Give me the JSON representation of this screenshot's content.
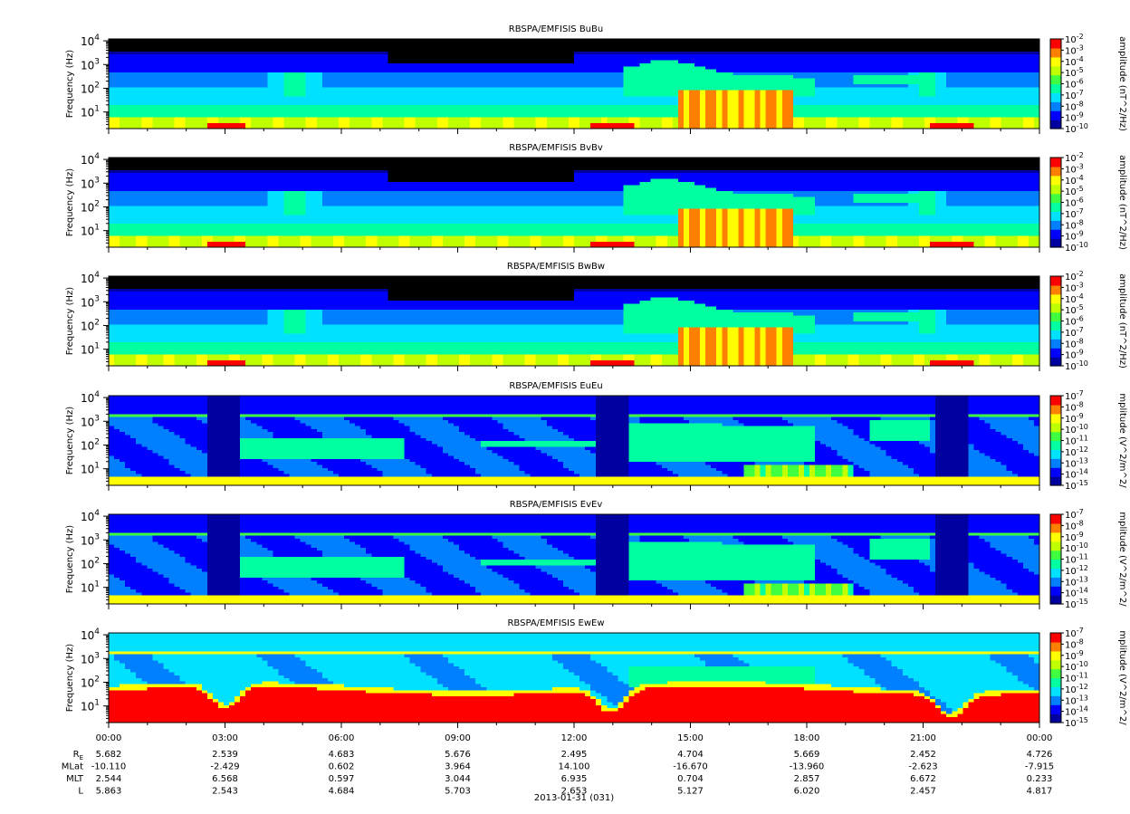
{
  "chart_data": {
    "type": "heatmap",
    "panels": [
      {
        "title": "RBSPA/EMFISIS  BuBu",
        "ylabel": "Frequency (Hz)",
        "y_scale": "log",
        "ylim": [
          2,
          12000
        ],
        "y_ticks": [
          {
            "base": "10",
            "exp": "1",
            "value": 10
          },
          {
            "base": "10",
            "exp": "2",
            "value": 100
          },
          {
            "base": "10",
            "exp": "3",
            "value": 1000
          },
          {
            "base": "10",
            "exp": "4",
            "value": 10000
          }
        ],
        "colorbar_label": "amplitude (nT^2/Hz)",
        "colorbar_ticks": [
          {
            "base": "10",
            "exp": "-2"
          },
          {
            "base": "10",
            "exp": "-3"
          },
          {
            "base": "10",
            "exp": "-4"
          },
          {
            "base": "10",
            "exp": "-5"
          },
          {
            "base": "10",
            "exp": "-6"
          },
          {
            "base": "10",
            "exp": "-7"
          },
          {
            "base": "10",
            "exp": "-8"
          },
          {
            "base": "10",
            "exp": "-9"
          },
          {
            "base": "10",
            "exp": "-10"
          }
        ],
        "kind": "B",
        "variant": 0
      },
      {
        "title": "RBSPA/EMFISIS  BvBv",
        "ylabel": "Frequency (Hz)",
        "y_scale": "log",
        "ylim": [
          2,
          12000
        ],
        "y_ticks": [
          {
            "base": "10",
            "exp": "1",
            "value": 10
          },
          {
            "base": "10",
            "exp": "2",
            "value": 100
          },
          {
            "base": "10",
            "exp": "3",
            "value": 1000
          },
          {
            "base": "10",
            "exp": "4",
            "value": 10000
          }
        ],
        "colorbar_label": "amplitude (nT^2/Hz)",
        "colorbar_ticks": [
          {
            "base": "10",
            "exp": "-2"
          },
          {
            "base": "10",
            "exp": "-3"
          },
          {
            "base": "10",
            "exp": "-4"
          },
          {
            "base": "10",
            "exp": "-5"
          },
          {
            "base": "10",
            "exp": "-6"
          },
          {
            "base": "10",
            "exp": "-7"
          },
          {
            "base": "10",
            "exp": "-8"
          },
          {
            "base": "10",
            "exp": "-9"
          },
          {
            "base": "10",
            "exp": "-10"
          }
        ],
        "kind": "B",
        "variant": 1
      },
      {
        "title": "RBSPA/EMFISIS  BwBw",
        "ylabel": "Frequency (Hz)",
        "y_scale": "log",
        "ylim": [
          2,
          12000
        ],
        "y_ticks": [
          {
            "base": "10",
            "exp": "1",
            "value": 10
          },
          {
            "base": "10",
            "exp": "2",
            "value": 100
          },
          {
            "base": "10",
            "exp": "3",
            "value": 1000
          },
          {
            "base": "10",
            "exp": "4",
            "value": 10000
          }
        ],
        "colorbar_label": "amplitude (nT^2/Hz)",
        "colorbar_ticks": [
          {
            "base": "10",
            "exp": "-2"
          },
          {
            "base": "10",
            "exp": "-3"
          },
          {
            "base": "10",
            "exp": "-4"
          },
          {
            "base": "10",
            "exp": "-5"
          },
          {
            "base": "10",
            "exp": "-6"
          },
          {
            "base": "10",
            "exp": "-7"
          },
          {
            "base": "10",
            "exp": "-8"
          },
          {
            "base": "10",
            "exp": "-9"
          },
          {
            "base": "10",
            "exp": "-10"
          }
        ],
        "kind": "B",
        "variant": 2
      },
      {
        "title": "RBSPA/EMFISIS  EuEu",
        "ylabel": "Frequency (Hz)",
        "y_scale": "log",
        "ylim": [
          2,
          12000
        ],
        "y_ticks": [
          {
            "base": "10",
            "exp": "1",
            "value": 10
          },
          {
            "base": "10",
            "exp": "2",
            "value": 100
          },
          {
            "base": "10",
            "exp": "3",
            "value": 1000
          },
          {
            "base": "10",
            "exp": "4",
            "value": 10000
          }
        ],
        "colorbar_label": "mplitude (V^2/m^2/",
        "colorbar_ticks": [
          {
            "base": "10",
            "exp": "-7"
          },
          {
            "base": "10",
            "exp": "-8"
          },
          {
            "base": "10",
            "exp": "-9"
          },
          {
            "base": "10",
            "exp": "-10"
          },
          {
            "base": "10",
            "exp": "-11"
          },
          {
            "base": "10",
            "exp": "-12"
          },
          {
            "base": "10",
            "exp": "-13"
          },
          {
            "base": "10",
            "exp": "-14"
          },
          {
            "base": "10",
            "exp": "-15"
          }
        ],
        "kind": "E",
        "variant": 0
      },
      {
        "title": "RBSPA/EMFISIS  EvEv",
        "ylabel": "Frequency (Hz)",
        "y_scale": "log",
        "ylim": [
          2,
          12000
        ],
        "y_ticks": [
          {
            "base": "10",
            "exp": "1",
            "value": 10
          },
          {
            "base": "10",
            "exp": "2",
            "value": 100
          },
          {
            "base": "10",
            "exp": "3",
            "value": 1000
          },
          {
            "base": "10",
            "exp": "4",
            "value": 10000
          }
        ],
        "colorbar_label": "mplitude (V^2/m^2/",
        "colorbar_ticks": [
          {
            "base": "10",
            "exp": "-7"
          },
          {
            "base": "10",
            "exp": "-8"
          },
          {
            "base": "10",
            "exp": "-9"
          },
          {
            "base": "10",
            "exp": "-10"
          },
          {
            "base": "10",
            "exp": "-11"
          },
          {
            "base": "10",
            "exp": "-12"
          },
          {
            "base": "10",
            "exp": "-13"
          },
          {
            "base": "10",
            "exp": "-14"
          },
          {
            "base": "10",
            "exp": "-15"
          }
        ],
        "kind": "E",
        "variant": 1
      },
      {
        "title": "RBSPA/EMFISIS  EwEw",
        "ylabel": "Frequency (Hz)",
        "y_scale": "log",
        "ylim": [
          2,
          12000
        ],
        "y_ticks": [
          {
            "base": "10",
            "exp": "1",
            "value": 10
          },
          {
            "base": "10",
            "exp": "2",
            "value": 100
          },
          {
            "base": "10",
            "exp": "3",
            "value": 1000
          },
          {
            "base": "10",
            "exp": "4",
            "value": 10000
          }
        ],
        "colorbar_label": "mplitude (V^2/m^2/",
        "colorbar_ticks": [
          {
            "base": "10",
            "exp": "-7"
          },
          {
            "base": "10",
            "exp": "-8"
          },
          {
            "base": "10",
            "exp": "-9"
          },
          {
            "base": "10",
            "exp": "-10"
          },
          {
            "base": "10",
            "exp": "-11"
          },
          {
            "base": "10",
            "exp": "-12"
          },
          {
            "base": "10",
            "exp": "-13"
          },
          {
            "base": "10",
            "exp": "-14"
          },
          {
            "base": "10",
            "exp": "-15"
          }
        ],
        "kind": "Ew",
        "variant": 0
      }
    ],
    "colormap": [
      "#0000a0",
      "#0000ff",
      "#0080ff",
      "#00e0ff",
      "#00ffa0",
      "#40ff40",
      "#c0ff00",
      "#ffff00",
      "#ff8000",
      "#ff0000"
    ],
    "x_ticks": [
      "00:00",
      "03:00",
      "06:00",
      "09:00",
      "12:00",
      "15:00",
      "18:00",
      "21:00",
      "00:00"
    ],
    "ephemeris": [
      {
        "label": "R",
        "subscript": "E",
        "values": [
          "5.682",
          "2.539",
          "4.683",
          "5.676",
          "2.495",
          "4.704",
          "5.669",
          "2.452",
          "4.726"
        ]
      },
      {
        "label": "MLat",
        "subscript": "",
        "values": [
          "-10.110",
          "-2.429",
          "0.602",
          "3.964",
          "14.100",
          "-16.670",
          "-13.960",
          "-2.623",
          "-7.915"
        ]
      },
      {
        "label": "MLT",
        "subscript": "",
        "values": [
          "2.544",
          "6.568",
          "0.597",
          "3.044",
          "6.935",
          "0.704",
          "2.857",
          "6.672",
          "0.233"
        ]
      },
      {
        "label": "L",
        "subscript": "",
        "values": [
          "5.863",
          "2.543",
          "4.684",
          "5.703",
          "2.653",
          "5.127",
          "6.020",
          "2.457",
          "4.817"
        ]
      }
    ],
    "date_label": "2013-01-31 (031)"
  }
}
